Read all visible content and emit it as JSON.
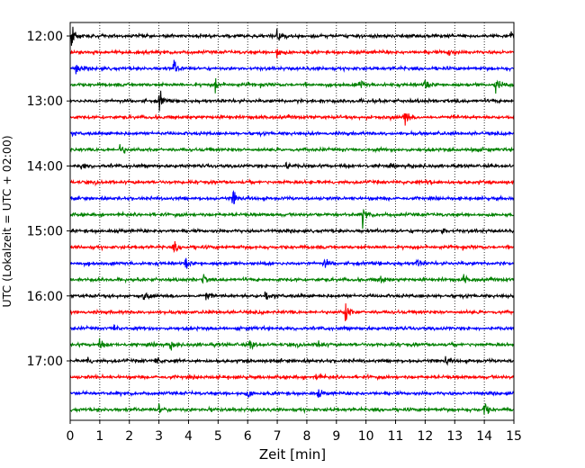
{
  "chart_data": {
    "type": "line",
    "title": "",
    "xlabel": "Zeit  [min]",
    "ylabel": "UTC (Lokalzeit = UTC + 02:00)",
    "xlim": [
      0,
      15
    ],
    "x_ticks": [
      "0",
      "1",
      "2",
      "3",
      "4",
      "5",
      "6",
      "7",
      "8",
      "9",
      "10",
      "11",
      "12",
      "13",
      "14",
      "15"
    ],
    "y_tick_labels": [
      "12:00",
      "13:00",
      "14:00",
      "15:00",
      "16:00",
      "17:00"
    ],
    "grid": "vertical dotted",
    "colors": [
      "#000000",
      "#ff0000",
      "#0000ff",
      "#008000"
    ],
    "rows": [
      {
        "start": "12:00",
        "color": "#000000",
        "events": [
          [
            0.05,
            14
          ],
          [
            7.0,
            11
          ],
          [
            14.9,
            6
          ]
        ]
      },
      {
        "start": "12:15",
        "color": "#ff0000",
        "events": [
          [
            7.0,
            7
          ],
          [
            12.8,
            5
          ]
        ]
      },
      {
        "start": "12:30",
        "color": "#0000ff",
        "events": [
          [
            0.2,
            6
          ],
          [
            3.5,
            8
          ]
        ]
      },
      {
        "start": "12:45",
        "color": "#008000",
        "events": [
          [
            4.9,
            6
          ],
          [
            9.8,
            5
          ],
          [
            12.0,
            6
          ],
          [
            14.4,
            8
          ]
        ]
      },
      {
        "start": "13:00",
        "color": "#000000",
        "events": [
          [
            3.0,
            13
          ]
        ]
      },
      {
        "start": "13:15",
        "color": "#ff0000",
        "events": [
          [
            11.3,
            13
          ]
        ]
      },
      {
        "start": "13:30",
        "color": "#0000ff",
        "events": []
      },
      {
        "start": "13:45",
        "color": "#008000",
        "events": [
          [
            1.7,
            6
          ],
          [
            13.6,
            5
          ]
        ]
      },
      {
        "start": "14:00",
        "color": "#000000",
        "events": [
          [
            7.3,
            5
          ],
          [
            0.4,
            4
          ]
        ]
      },
      {
        "start": "14:15",
        "color": "#ff0000",
        "events": [
          [
            12.1,
            5
          ]
        ]
      },
      {
        "start": "14:30",
        "color": "#0000ff",
        "events": [
          [
            5.5,
            10
          ]
        ]
      },
      {
        "start": "14:45",
        "color": "#008000",
        "events": [
          [
            9.9,
            11
          ]
        ]
      },
      {
        "start": "15:00",
        "color": "#000000",
        "events": [
          [
            12.6,
            4
          ]
        ]
      },
      {
        "start": "15:15",
        "color": "#ff0000",
        "events": [
          [
            3.5,
            6
          ]
        ]
      },
      {
        "start": "15:30",
        "color": "#0000ff",
        "events": [
          [
            3.9,
            6
          ],
          [
            8.6,
            5
          ],
          [
            11.7,
            5
          ]
        ]
      },
      {
        "start": "15:45",
        "color": "#008000",
        "events": [
          [
            4.5,
            5
          ],
          [
            10.5,
            5
          ],
          [
            13.3,
            5
          ]
        ]
      },
      {
        "start": "16:00",
        "color": "#000000",
        "events": [
          [
            2.5,
            5
          ],
          [
            4.6,
            4
          ],
          [
            6.6,
            5
          ]
        ]
      },
      {
        "start": "16:15",
        "color": "#ff0000",
        "events": [
          [
            9.3,
            14
          ]
        ]
      },
      {
        "start": "16:30",
        "color": "#0000ff",
        "events": [
          [
            1.5,
            4
          ]
        ]
      },
      {
        "start": "16:45",
        "color": "#008000",
        "events": [
          [
            1.0,
            6
          ],
          [
            3.4,
            5
          ],
          [
            6.1,
            6
          ],
          [
            8.4,
            6
          ]
        ]
      },
      {
        "start": "17:00",
        "color": "#000000",
        "events": [
          [
            0.6,
            4
          ],
          [
            2.9,
            4
          ],
          [
            12.7,
            5
          ]
        ]
      },
      {
        "start": "17:15",
        "color": "#ff0000",
        "events": [
          [
            8.3,
            5
          ]
        ]
      },
      {
        "start": "17:30",
        "color": "#0000ff",
        "events": [
          [
            6.0,
            4
          ],
          [
            8.4,
            4
          ]
        ]
      },
      {
        "start": "17:45",
        "color": "#008000",
        "events": [
          [
            3.0,
            5
          ],
          [
            4.7,
            5
          ],
          [
            14.0,
            8
          ]
        ]
      }
    ]
  }
}
